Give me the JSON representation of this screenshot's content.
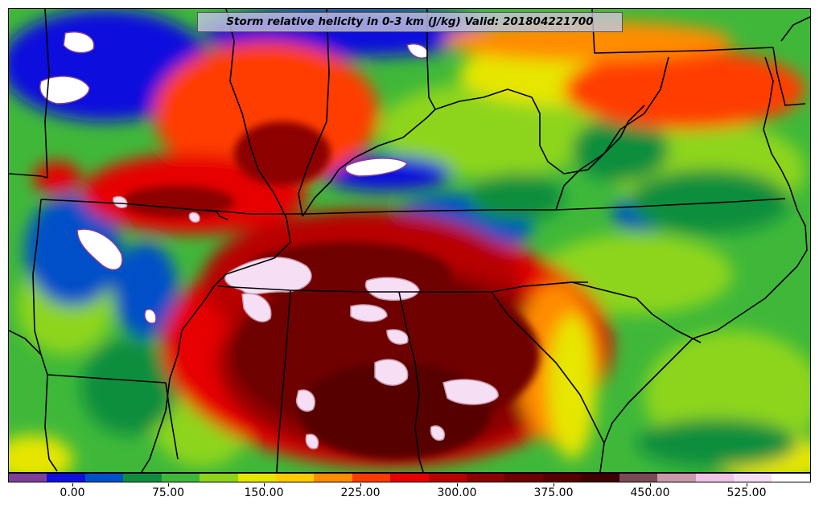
{
  "title": "Storm relative helicity in 0-3 km (J/kg) Valid: 201804221700",
  "colorbar": {
    "colors": [
      "#7f3f98",
      "#1010dd",
      "#0050c8",
      "#108e3e",
      "#3fb83a",
      "#8dd51b",
      "#e6e600",
      "#ffcc00",
      "#ff8c00",
      "#ff3c00",
      "#e60000",
      "#b80000",
      "#8c0000",
      "#6e0000",
      "#560000",
      "#3f0000",
      "#7a4a55",
      "#c89aaa",
      "#f0c4e6",
      "#f6dff4",
      "#ffffff"
    ],
    "tick_labels": [
      "0.00",
      "75.00",
      "150.00",
      "225.00",
      "300.00",
      "375.00",
      "450.00",
      "525.00"
    ]
  },
  "map": {
    "background_color": "#3fb83a"
  }
}
